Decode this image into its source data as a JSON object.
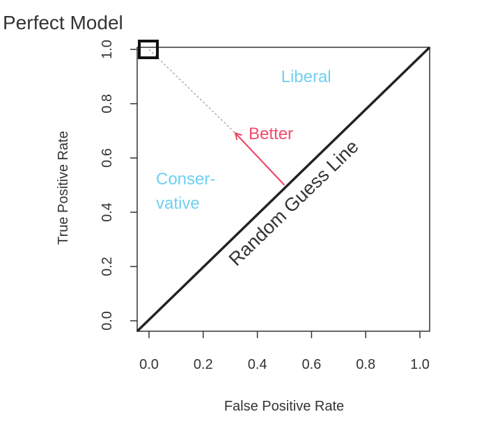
{
  "chart_data": {
    "type": "line",
    "title": "",
    "xlabel": "False Positive Rate",
    "ylabel": "True Positive Rate",
    "xlim": [
      0,
      1
    ],
    "ylim": [
      0,
      1
    ],
    "xticks": [
      "0.0",
      "0.2",
      "0.4",
      "0.6",
      "0.8",
      "1.0"
    ],
    "yticks": [
      "0.0",
      "0.2",
      "0.4",
      "0.6",
      "0.8",
      "1.0"
    ],
    "grid": false,
    "series": [
      {
        "name": "Random Guess Line",
        "x": [
          0,
          1
        ],
        "y": [
          0,
          1
        ]
      }
    ],
    "annotations": {
      "perfect_model": {
        "text": "Perfect Model",
        "x": 0,
        "y": 1
      },
      "liberal": {
        "text": "Liberal",
        "x": 0.58,
        "y": 0.88
      },
      "conservative_line1": {
        "text": "Conser-",
        "x": 0.18,
        "y": 0.53
      },
      "conservative_line2": {
        "text": "vative",
        "x": 0.16,
        "y": 0.44
      },
      "better": {
        "text": "Better",
        "x": 0.49,
        "y": 0.69
      },
      "random_guess": {
        "text": "Random Guess Line",
        "x": 0.63,
        "y": 0.49
      }
    },
    "better_arrow": {
      "from": [
        0.5,
        0.5
      ],
      "to": [
        0.32,
        0.69
      ]
    },
    "perfect_guide": {
      "from": [
        0,
        1
      ],
      "to": [
        0.32,
        0.69
      ]
    },
    "colors": {
      "axis": "#333333",
      "diagonal": "#222222",
      "liberal": "#6fd0f0",
      "conservative": "#6fd0f0",
      "better": "#f04a6a",
      "guide": "#999999"
    }
  }
}
